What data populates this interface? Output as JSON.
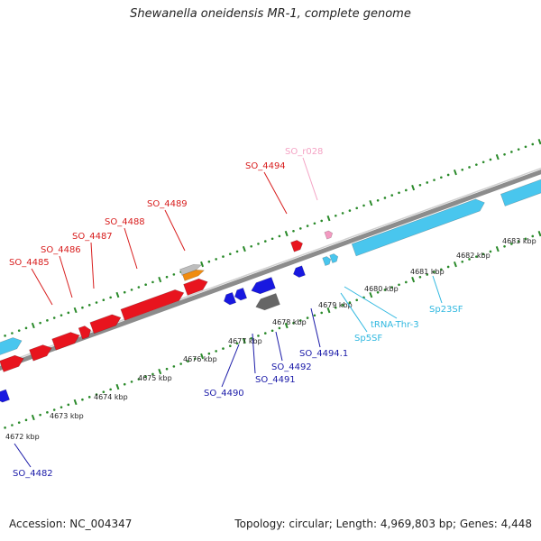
{
  "title": "Shewanella oneidensis MR-1, complete genome",
  "footer": {
    "accession": "Accession: NC_004347",
    "summary": "Topology: circular; Length: 4,969,803 bp; Genes: 4,448"
  },
  "colors": {
    "backbone": "#8c8c8c",
    "tick_dots": "#2a8a2a",
    "forward_gene": "#e8141e",
    "reverse_gene": "#1818e0",
    "rna": "#49c6ee",
    "pseudo": "#666666",
    "orange": "#f08c10",
    "grey_light": "#bdbdbd",
    "rrna_pink": "#f39ac1",
    "label_red": "#d81e1e",
    "label_blue": "#1a1aa8",
    "label_cyan": "#30b8e0",
    "label_pink": "#f4a3c4"
  },
  "scale": {
    "ticks": [
      {
        "label": "4672 kbp"
      },
      {
        "label": "4673 kbp"
      },
      {
        "label": "4674 kbp"
      },
      {
        "label": "4675 kbp"
      },
      {
        "label": "4676 kbp"
      },
      {
        "label": "4677 kbp"
      },
      {
        "label": "4678 kbp"
      },
      {
        "label": "4679 kbp"
      },
      {
        "label": "4680 kbp"
      },
      {
        "label": "4681 kbp"
      },
      {
        "label": "4682 kbp"
      },
      {
        "label": "4683 kbp"
      }
    ]
  },
  "gene_labels": [
    {
      "text": "SO_4485",
      "color": "label_red"
    },
    {
      "text": "SO_4486",
      "color": "label_red"
    },
    {
      "text": "SO_4487",
      "color": "label_red"
    },
    {
      "text": "SO_4488",
      "color": "label_red"
    },
    {
      "text": "SO_4489",
      "color": "label_red"
    },
    {
      "text": "SO_4494",
      "color": "label_red"
    },
    {
      "text": "SO_r028",
      "color": "label_pink"
    },
    {
      "text": "SO_4490",
      "color": "label_blue"
    },
    {
      "text": "SO_4491",
      "color": "label_blue"
    },
    {
      "text": "SO_4492",
      "color": "label_blue"
    },
    {
      "text": "SO_4494.1",
      "color": "label_blue"
    },
    {
      "text": "SO_4482",
      "color": "label_blue"
    },
    {
      "text": "tRNA-Thr-3",
      "color": "label_cyan"
    },
    {
      "text": "Sp5SF",
      "color": "label_cyan"
    },
    {
      "text": "Sp23SF",
      "color": "label_cyan"
    }
  ]
}
